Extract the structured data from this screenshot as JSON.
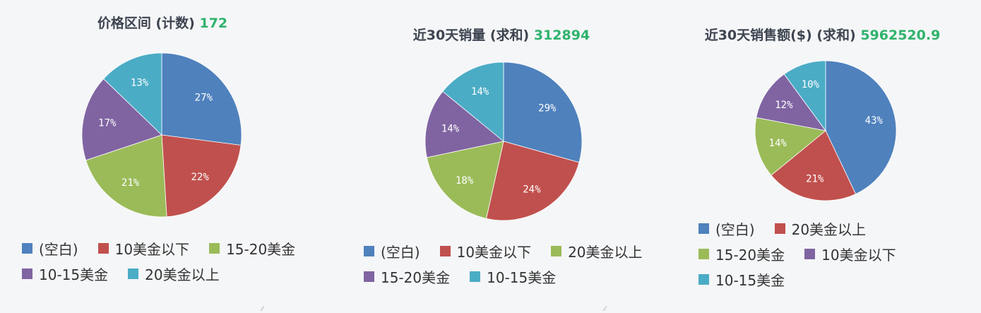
{
  "chart_data": [
    {
      "type": "pie",
      "title": "价格区间 (计数)",
      "total": "172",
      "slices": [
        {
          "label": "(空白)",
          "value": 27,
          "display": "27%",
          "color": "#4f81bd"
        },
        {
          "label": "10美金以下",
          "value": 22,
          "display": "22%",
          "color": "#c0504d"
        },
        {
          "label": "15-20美金",
          "value": 21,
          "display": "21%",
          "color": "#9bbb59"
        },
        {
          "label": "10-15美金",
          "value": 17,
          "display": "17%",
          "color": "#8064a2"
        },
        {
          "label": "20美金以上",
          "value": 13,
          "display": "13%",
          "color": "#4bacc6"
        }
      ],
      "legend_rows": [
        [
          0,
          1,
          2
        ],
        [
          3,
          4
        ]
      ]
    },
    {
      "type": "pie",
      "title": "近30天销量 (求和)",
      "total": "312894",
      "slices": [
        {
          "label": "(空白)",
          "value": 29,
          "display": "29%",
          "color": "#4f81bd"
        },
        {
          "label": "10美金以下",
          "value": 24,
          "display": "24%",
          "color": "#c0504d"
        },
        {
          "label": "20美金以上",
          "value": 18,
          "display": "18%",
          "color": "#9bbb59"
        },
        {
          "label": "15-20美金",
          "value": 14,
          "display": "14%",
          "color": "#8064a2"
        },
        {
          "label": "10-15美金",
          "value": 14,
          "display": "14%",
          "color": "#4bacc6"
        }
      ],
      "legend_rows": [
        [
          0,
          1,
          2
        ],
        [
          3,
          4
        ]
      ]
    },
    {
      "type": "pie",
      "title": "近30天销售额($) (求和)",
      "total": "5962520.9",
      "slices": [
        {
          "label": "(空白)",
          "value": 43,
          "display": "43%",
          "color": "#4f81bd"
        },
        {
          "label": "20美金以上",
          "value": 21,
          "display": "21%",
          "color": "#c0504d"
        },
        {
          "label": "15-20美金",
          "value": 14,
          "display": "14%",
          "color": "#9bbb59"
        },
        {
          "label": "10美金以下",
          "value": 12,
          "display": "12%",
          "color": "#8064a2"
        },
        {
          "label": "10-15美金",
          "value": 10,
          "display": "10%",
          "color": "#4bacc6"
        }
      ],
      "legend_rows": [
        [
          0,
          1
        ],
        [
          2,
          3
        ],
        [
          4
        ]
      ]
    }
  ]
}
